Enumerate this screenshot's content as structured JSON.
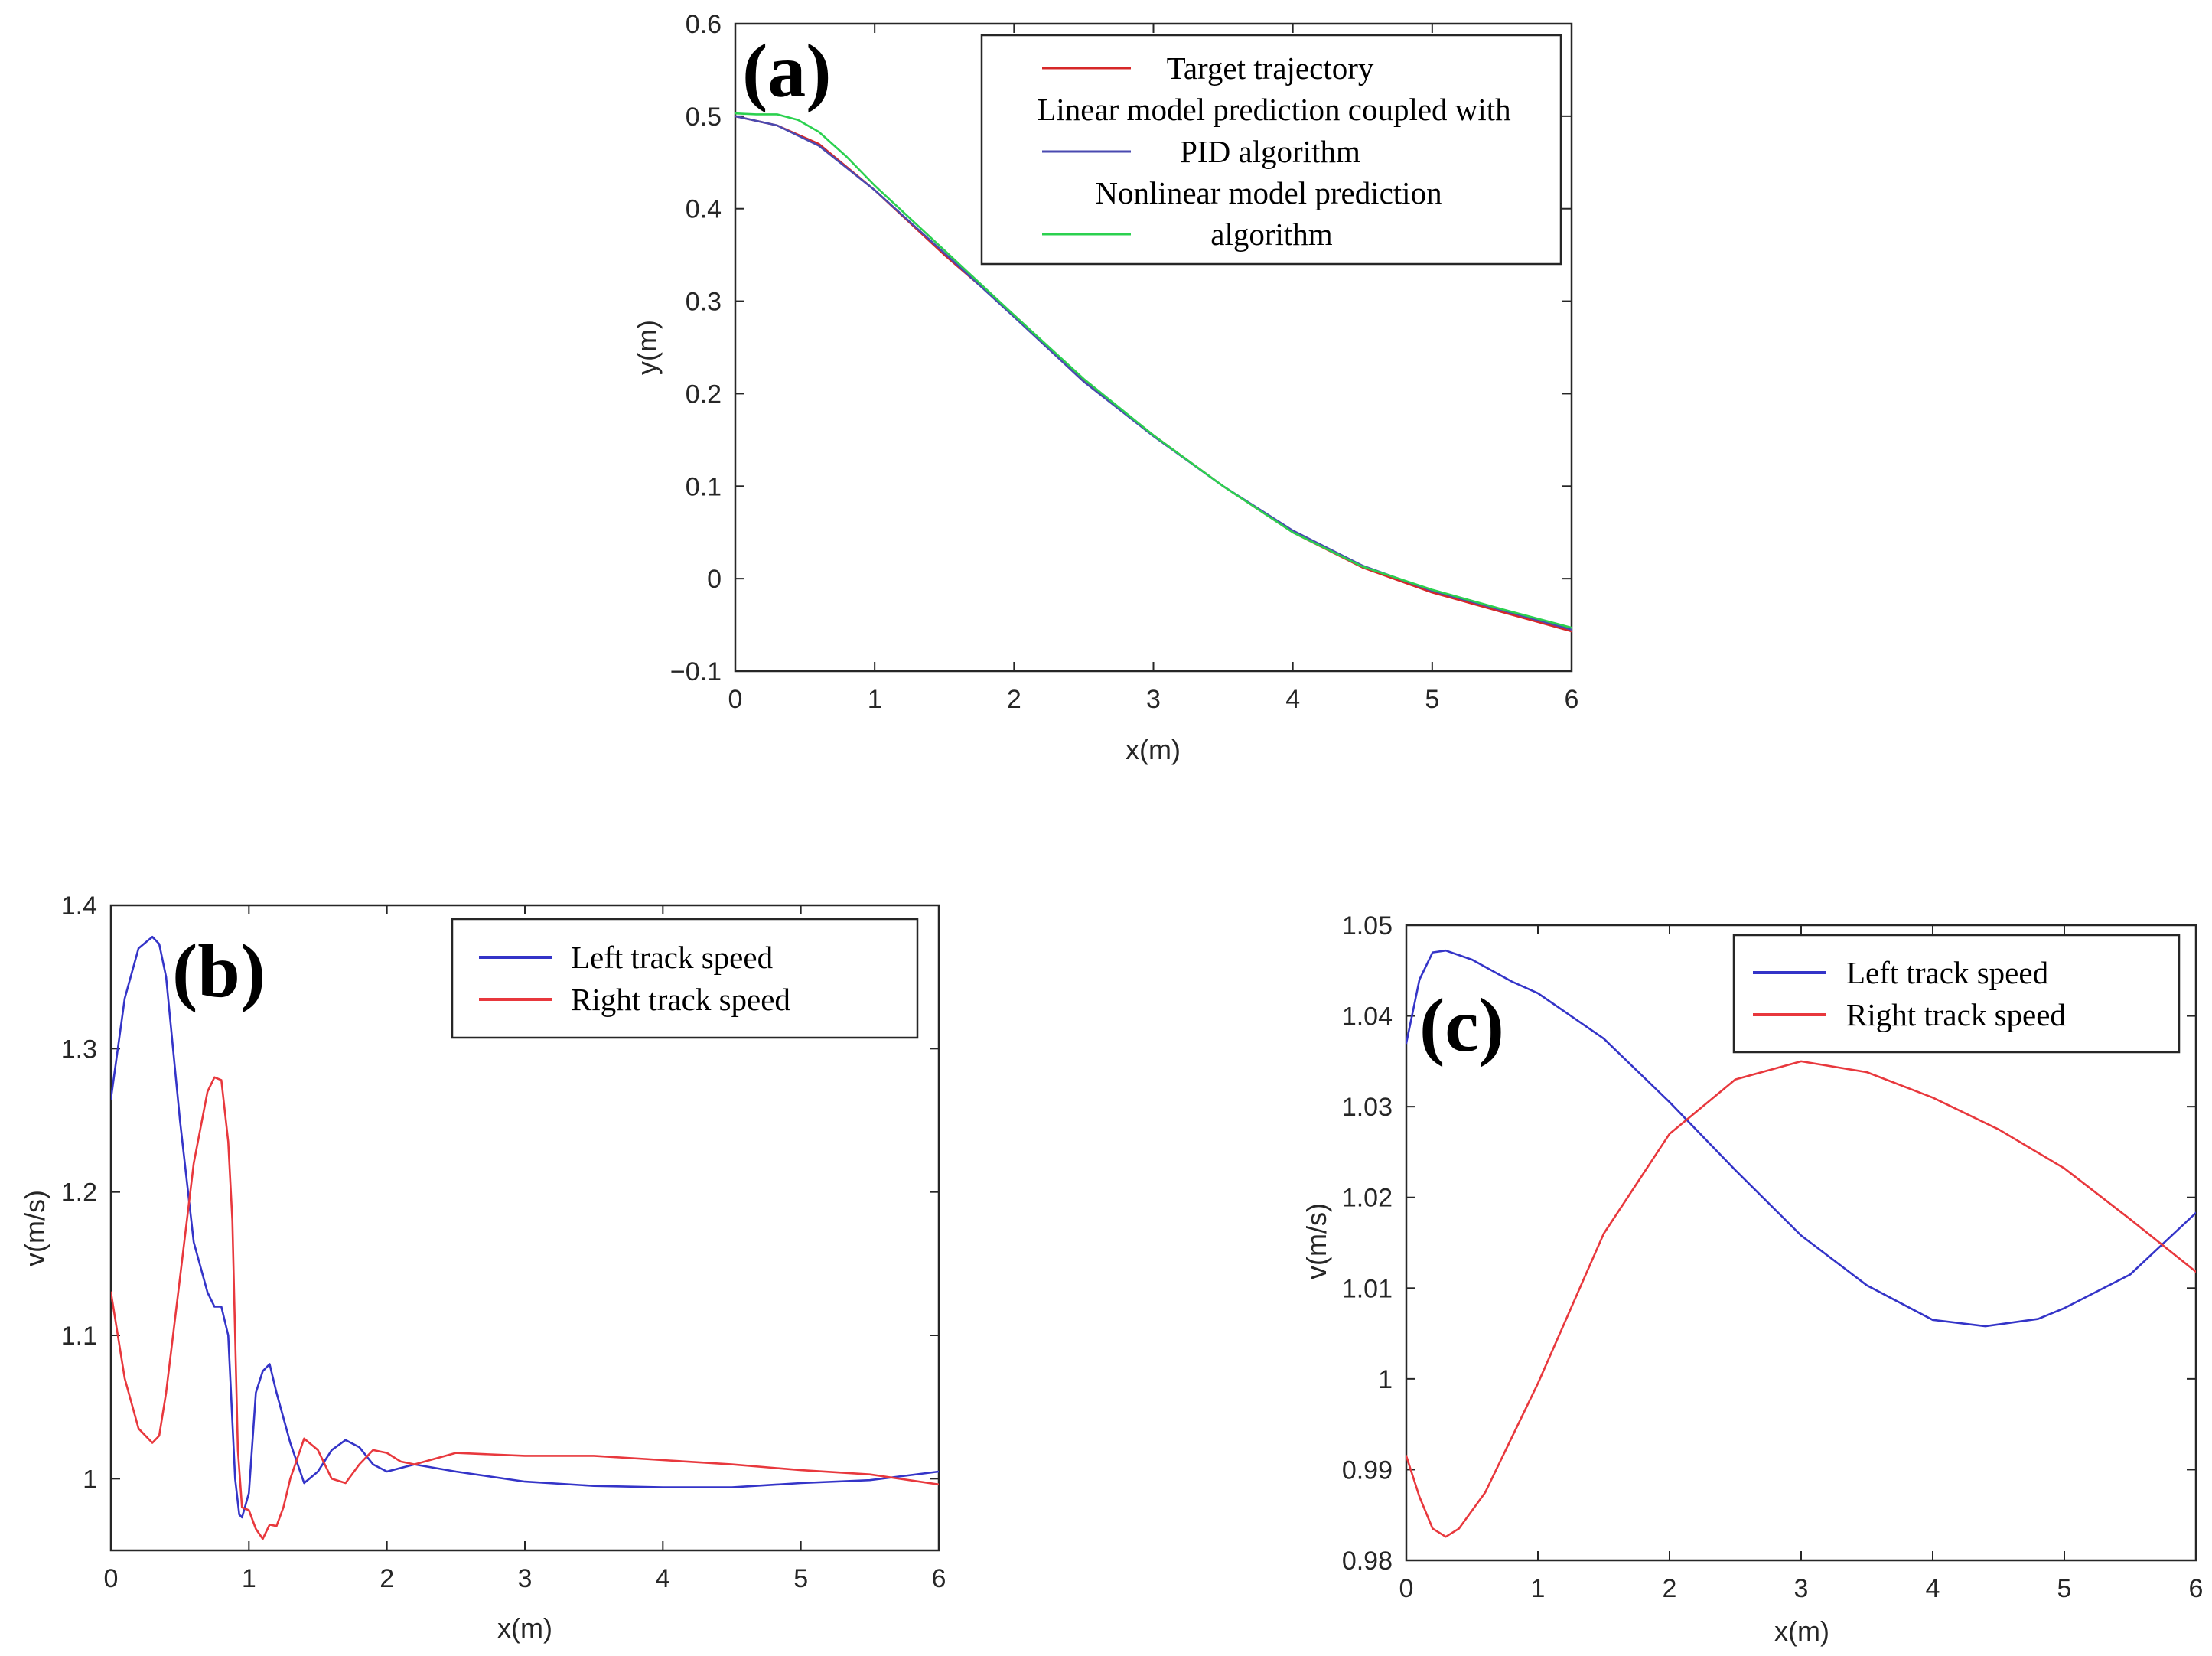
{
  "chart_data": [
    {
      "id": "a",
      "type": "line",
      "panel_label": "(a)",
      "xlabel": "x(m)",
      "ylabel": "y(m)",
      "xlim": [
        0,
        6
      ],
      "ylim": [
        -0.1,
        0.6
      ],
      "xticks": [
        0,
        1,
        2,
        3,
        4,
        5,
        6
      ],
      "yticks": [
        -0.1,
        0,
        0.1,
        0.2,
        0.3,
        0.4,
        0.5,
        0.6
      ],
      "xtick_labels": [
        "0",
        "1",
        "2",
        "3",
        "4",
        "5",
        "6"
      ],
      "ytick_labels": [
        "−0.1",
        "0",
        "0.1",
        "0.2",
        "0.3",
        "0.4",
        "0.5",
        "0.6"
      ],
      "legend_position": "top-right",
      "series": [
        {
          "name": "Target trajectory",
          "legend_lines": [
            "Target trajectory"
          ],
          "color": "#d62728",
          "x": [
            0,
            0.3,
            0.6,
            1.0,
            1.5,
            2.0,
            2.5,
            3.0,
            3.5,
            4.0,
            4.5,
            5.0,
            5.5,
            6.0
          ],
          "y": [
            0.5,
            0.49,
            0.47,
            0.42,
            0.35,
            0.285,
            0.215,
            0.155,
            0.1,
            0.05,
            0.012,
            -0.015,
            -0.036,
            -0.057
          ]
        },
        {
          "name": "Linear model prediction coupled with PID algorithm",
          "legend_lines": [
            "Linear model prediction coupled with",
            "PID algorithm"
          ],
          "color": "#4a4ab0",
          "x": [
            0,
            0.3,
            0.6,
            1.0,
            1.5,
            2.0,
            2.5,
            3.0,
            3.5,
            4.0,
            4.5,
            5.0,
            5.5,
            6.0
          ],
          "y": [
            0.5,
            0.49,
            0.468,
            0.42,
            0.352,
            0.283,
            0.213,
            0.154,
            0.1,
            0.052,
            0.014,
            -0.013,
            -0.034,
            -0.055
          ]
        },
        {
          "name": "Nonlinear model prediction algorithm",
          "legend_lines": [
            "Nonlinear model prediction",
            "algorithm"
          ],
          "color": "#2bd14f",
          "x": [
            0,
            0.15,
            0.3,
            0.45,
            0.6,
            0.8,
            1.0,
            1.5,
            2.0,
            2.5,
            3.0,
            3.5,
            4.0,
            4.5,
            5.0,
            5.5,
            6.0
          ],
          "y": [
            0.503,
            0.502,
            0.502,
            0.496,
            0.483,
            0.456,
            0.425,
            0.355,
            0.285,
            0.216,
            0.155,
            0.1,
            0.05,
            0.013,
            -0.012,
            -0.033,
            -0.053
          ]
        }
      ]
    },
    {
      "id": "b",
      "type": "line",
      "panel_label": "(b)",
      "xlabel": "x(m)",
      "ylabel": "v(m/s)",
      "xlim": [
        0,
        6
      ],
      "ylim": [
        0.95,
        1.4
      ],
      "xticks": [
        0,
        1,
        2,
        3,
        4,
        5,
        6
      ],
      "yticks": [
        1,
        1.1,
        1.2,
        1.3,
        1.4
      ],
      "xtick_labels": [
        "0",
        "1",
        "2",
        "3",
        "4",
        "5",
        "6"
      ],
      "ytick_labels": [
        "1",
        "1.1",
        "1.2",
        "1.3",
        "1.4"
      ],
      "legend_position": "top-right",
      "series": [
        {
          "name": "Left track speed",
          "color": "#3434c8",
          "x": [
            0,
            0.05,
            0.1,
            0.2,
            0.3,
            0.35,
            0.4,
            0.5,
            0.6,
            0.7,
            0.75,
            0.8,
            0.85,
            0.9,
            0.93,
            0.95,
            1.0,
            1.05,
            1.1,
            1.15,
            1.2,
            1.3,
            1.4,
            1.5,
            1.6,
            1.7,
            1.8,
            1.9,
            2.0,
            2.2,
            2.5,
            3.0,
            3.5,
            4.0,
            4.5,
            5.0,
            5.5,
            6.0
          ],
          "y": [
            1.265,
            1.3,
            1.335,
            1.37,
            1.378,
            1.373,
            1.35,
            1.25,
            1.165,
            1.13,
            1.12,
            1.12,
            1.1,
            1.0,
            0.975,
            0.973,
            0.99,
            1.06,
            1.075,
            1.08,
            1.06,
            1.025,
            0.997,
            1.005,
            1.02,
            1.027,
            1.022,
            1.01,
            1.005,
            1.01,
            1.005,
            0.998,
            0.995,
            0.994,
            0.994,
            0.997,
            0.999,
            1.005
          ]
        },
        {
          "name": "Right track speed",
          "color": "#e8383d",
          "x": [
            0,
            0.1,
            0.2,
            0.3,
            0.35,
            0.4,
            0.5,
            0.6,
            0.7,
            0.75,
            0.8,
            0.85,
            0.88,
            0.9,
            0.92,
            0.95,
            1.0,
            1.05,
            1.1,
            1.15,
            1.2,
            1.25,
            1.3,
            1.4,
            1.5,
            1.6,
            1.7,
            1.8,
            1.9,
            2.0,
            2.1,
            2.2,
            2.5,
            3.0,
            3.5,
            4.0,
            4.5,
            5.0,
            5.5,
            6.0
          ],
          "y": [
            1.13,
            1.07,
            1.035,
            1.025,
            1.03,
            1.06,
            1.14,
            1.22,
            1.27,
            1.28,
            1.278,
            1.235,
            1.18,
            1.1,
            1.02,
            0.98,
            0.978,
            0.965,
            0.958,
            0.968,
            0.967,
            0.98,
            1.0,
            1.028,
            1.02,
            1.0,
            0.997,
            1.01,
            1.02,
            1.018,
            1.012,
            1.01,
            1.018,
            1.016,
            1.016,
            1.013,
            1.01,
            1.006,
            1.003,
            0.996
          ]
        }
      ]
    },
    {
      "id": "c",
      "type": "line",
      "panel_label": "(c)",
      "xlabel": "x(m)",
      "ylabel": "v(m/s)",
      "xlim": [
        0,
        6
      ],
      "ylim": [
        0.98,
        1.05
      ],
      "xticks": [
        0,
        1,
        2,
        3,
        4,
        5,
        6
      ],
      "yticks": [
        0.98,
        0.99,
        1,
        1.01,
        1.02,
        1.03,
        1.04,
        1.05
      ],
      "xtick_labels": [
        "0",
        "1",
        "2",
        "3",
        "4",
        "5",
        "6"
      ],
      "ytick_labels": [
        "0.98",
        "0.99",
        "1",
        "1.01",
        "1.02",
        "1.03",
        "1.04",
        "1.05"
      ],
      "legend_position": "top-right",
      "series": [
        {
          "name": "Left track speed",
          "color": "#3434c8",
          "x": [
            0,
            0.1,
            0.2,
            0.3,
            0.5,
            0.8,
            1.0,
            1.5,
            2.0,
            2.5,
            3.0,
            3.5,
            4.0,
            4.4,
            4.8,
            5.0,
            5.5,
            6.0
          ],
          "y": [
            1.037,
            1.044,
            1.047,
            1.0472,
            1.0462,
            1.0438,
            1.0425,
            1.0375,
            1.0305,
            1.023,
            1.0158,
            1.0103,
            1.0065,
            1.0058,
            1.0066,
            1.0078,
            1.0115,
            1.0183
          ]
        },
        {
          "name": "Right track speed",
          "color": "#e8383d",
          "x": [
            0,
            0.1,
            0.2,
            0.3,
            0.4,
            0.6,
            0.8,
            1.0,
            1.5,
            2.0,
            2.5,
            3.0,
            3.5,
            4.0,
            4.5,
            5.0,
            5.5,
            6.0
          ],
          "y": [
            0.9915,
            0.987,
            0.9835,
            0.9826,
            0.9835,
            0.9875,
            0.9935,
            0.9995,
            1.016,
            1.027,
            1.033,
            1.035,
            1.0338,
            1.031,
            1.0275,
            1.0232,
            1.0176,
            1.0118
          ]
        }
      ]
    }
  ]
}
